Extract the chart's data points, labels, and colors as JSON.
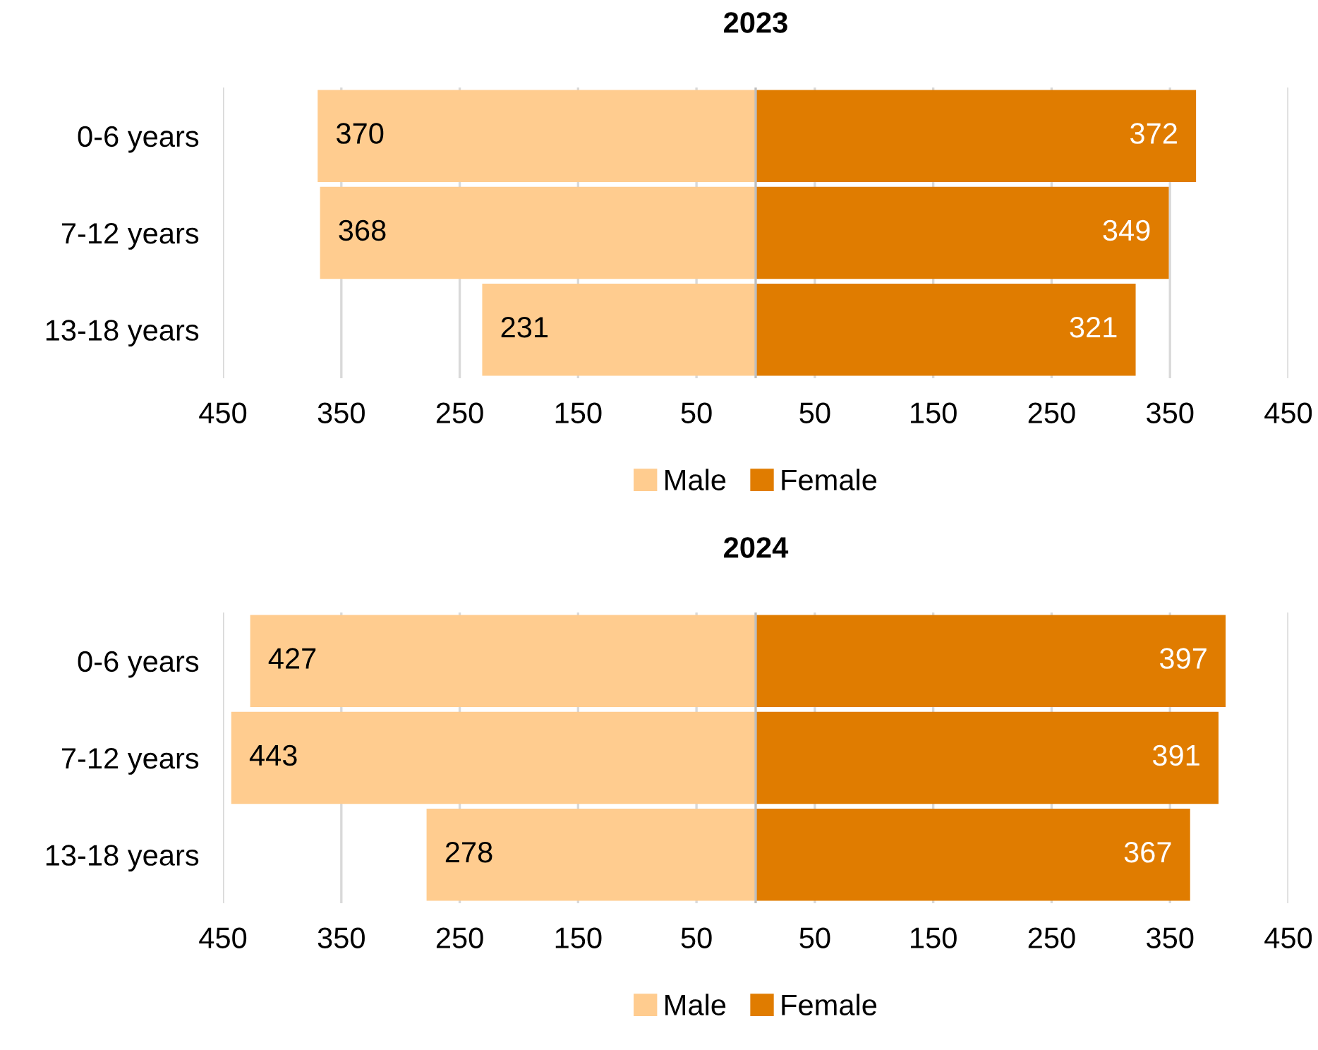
{
  "chart_data": [
    {
      "type": "bar",
      "title": "2023",
      "orientation": "horizontal",
      "categories": [
        "0-6 years",
        "7-12 years",
        "13-18 years"
      ],
      "series": [
        {
          "name": "Male",
          "color": "#ffcc8f",
          "values": [
            370,
            368,
            231
          ],
          "base": [
            -370,
            -368,
            -231
          ]
        },
        {
          "name": "Female",
          "color": "#e07c00",
          "values": [
            372,
            349,
            321
          ],
          "base": [
            0,
            0,
            0
          ]
        }
      ],
      "data_labels": true,
      "xlim": [
        -450,
        450
      ],
      "xticks": [
        {
          "value": -450,
          "label": "450"
        },
        {
          "value": -350,
          "label": "350"
        },
        {
          "value": -250,
          "label": "250"
        },
        {
          "value": -150,
          "label": "150"
        },
        {
          "value": -50,
          "label": "50"
        },
        50,
        150,
        250,
        350,
        450
      ],
      "grid": "x",
      "legend": "bottom"
    },
    {
      "type": "bar",
      "title": "2024",
      "orientation": "horizontal",
      "categories": [
        "0-6 years",
        "7-12 years",
        "13-18 years"
      ],
      "series": [
        {
          "name": "Male",
          "color": "#ffcc8f",
          "values": [
            427,
            443,
            278
          ],
          "base": [
            -427,
            -443,
            -278
          ]
        },
        {
          "name": "Female",
          "color": "#e07c00",
          "values": [
            397,
            391,
            367
          ],
          "base": [
            0,
            0,
            0
          ]
        }
      ],
      "data_labels": true,
      "xlim": [
        -450,
        450
      ],
      "xticks": [
        {
          "value": -450,
          "label": "450"
        },
        {
          "value": -350,
          "label": "350"
        },
        {
          "value": -250,
          "label": "250"
        },
        {
          "value": -150,
          "label": "150"
        },
        {
          "value": -50,
          "label": "50"
        },
        50,
        150,
        250,
        350,
        450
      ],
      "grid": "x",
      "legend": "bottom"
    }
  ]
}
